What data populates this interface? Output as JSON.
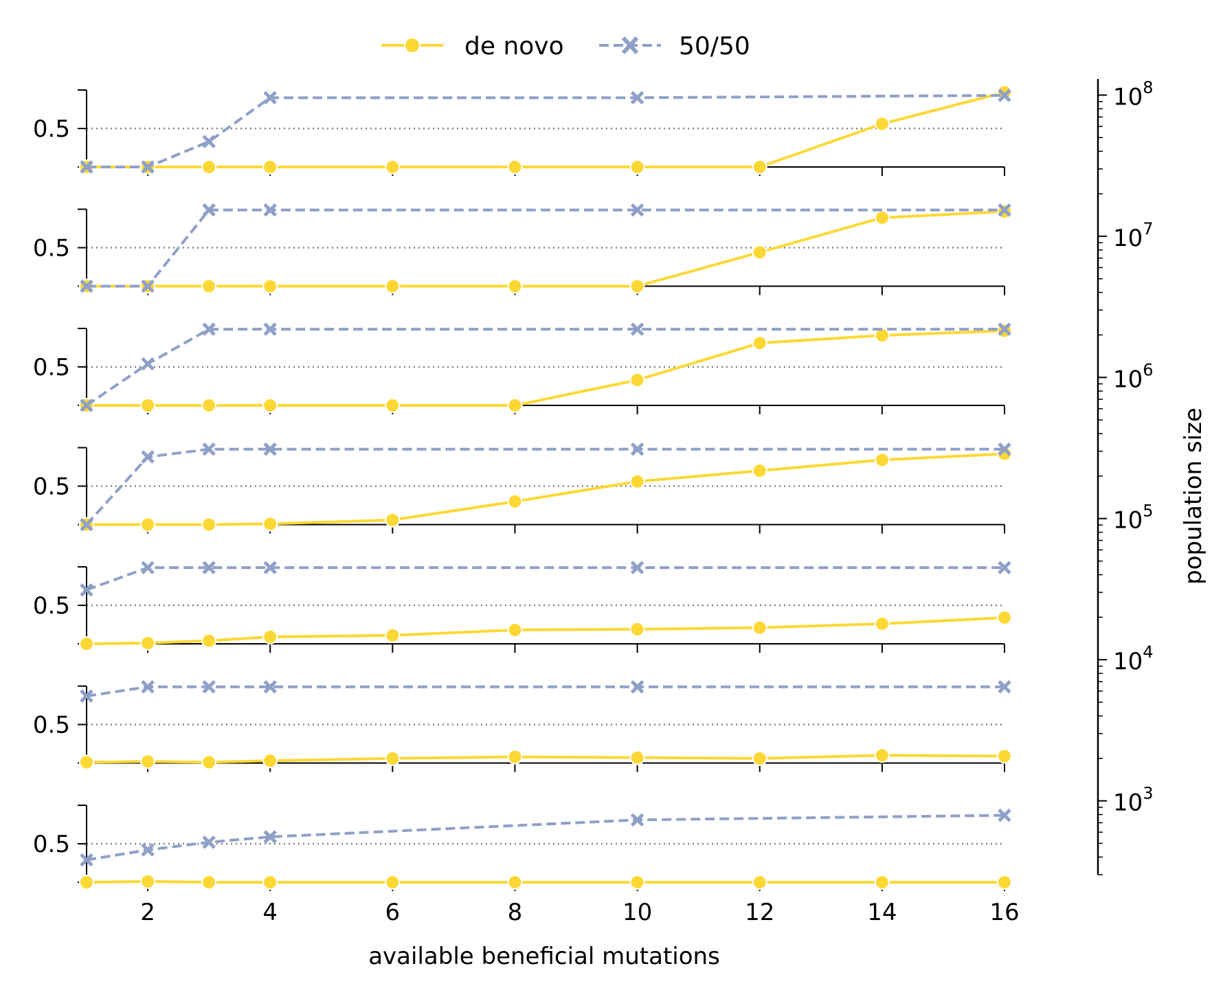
{
  "chart_data": {
    "type": "line",
    "xlabel": "available beneficial mutations",
    "x_ticks": [
      2,
      4,
      6,
      8,
      10,
      12,
      14,
      16
    ],
    "xlim": [
      1,
      16
    ],
    "panel_ylim": [
      0,
      1
    ],
    "panel_y_ticks": [
      0.5
    ],
    "reference_line": 0.5,
    "legend": {
      "placement": "top-center",
      "entries": [
        "de novo",
        "50/50"
      ]
    },
    "colors": {
      "de_novo": "#FDD835",
      "fifty": "#8FA0C8",
      "reference": "#808080"
    },
    "series_styles": {
      "de novo": {
        "marker": "circle",
        "dash": "solid"
      },
      "50/50": {
        "marker": "x",
        "dash": "dashed"
      }
    },
    "secondary_axis": {
      "label": "population size",
      "scale": "log",
      "range": [
        300,
        130000000
      ],
      "ticks": [
        {
          "base": "10",
          "exp": "3",
          "value": 1000
        },
        {
          "base": "10",
          "exp": "4",
          "value": 10000
        },
        {
          "base": "10",
          "exp": "5",
          "value": 100000
        },
        {
          "base": "10",
          "exp": "6",
          "value": 1000000
        },
        {
          "base": "10",
          "exp": "7",
          "value": 10000000
        },
        {
          "base": "10",
          "exp": "8",
          "value": 100000000
        }
      ]
    },
    "panels": [
      {
        "series": [
          {
            "name": "de novo",
            "x": [
              1,
              2,
              3,
              4,
              6,
              8,
              10,
              12,
              14,
              16
            ],
            "y": [
              0,
              0,
              0,
              0,
              0,
              0,
              0,
              0,
              0.56,
              0.97
            ]
          },
          {
            "name": "50/50",
            "x": [
              1,
              2,
              3,
              4,
              10,
              16
            ],
            "y": [
              0,
              0,
              0.33,
              0.9,
              0.9,
              0.93
            ]
          }
        ]
      },
      {
        "series": [
          {
            "name": "de novo",
            "x": [
              1,
              2,
              3,
              4,
              6,
              8,
              10,
              12,
              14,
              16
            ],
            "y": [
              0,
              0,
              0,
              0,
              0,
              0,
              0,
              0.44,
              0.89,
              0.97
            ]
          },
          {
            "name": "50/50",
            "x": [
              1,
              2,
              3,
              4,
              10,
              16
            ],
            "y": [
              0,
              0,
              0.99,
              0.99,
              0.99,
              0.99
            ]
          }
        ]
      },
      {
        "series": [
          {
            "name": "de novo",
            "x": [
              1,
              2,
              3,
              4,
              6,
              8,
              10,
              12,
              14,
              16
            ],
            "y": [
              0,
              0,
              0,
              0,
              0,
              0,
              0.33,
              0.81,
              0.91,
              0.97
            ]
          },
          {
            "name": "50/50",
            "x": [
              1,
              2,
              3,
              4,
              10,
              16
            ],
            "y": [
              0,
              0.54,
              0.99,
              0.99,
              0.99,
              0.99
            ]
          }
        ]
      },
      {
        "series": [
          {
            "name": "de novo",
            "x": [
              1,
              2,
              3,
              4,
              6,
              8,
              10,
              12,
              14,
              16
            ],
            "y": [
              0,
              0,
              0,
              0.01,
              0.06,
              0.3,
              0.56,
              0.7,
              0.84,
              0.92
            ]
          },
          {
            "name": "50/50",
            "x": [
              1,
              2,
              3,
              4,
              10,
              16
            ],
            "y": [
              0,
              0.88,
              0.98,
              0.98,
              0.98,
              0.98
            ]
          }
        ]
      },
      {
        "series": [
          {
            "name": "de novo",
            "x": [
              1,
              2,
              3,
              4,
              6,
              8,
              10,
              12,
              14,
              16
            ],
            "y": [
              0,
              0.01,
              0.04,
              0.09,
              0.11,
              0.18,
              0.19,
              0.21,
              0.26,
              0.34
            ]
          },
          {
            "name": "50/50",
            "x": [
              1,
              2,
              3,
              4,
              10,
              16
            ],
            "y": [
              0.7,
              0.99,
              0.99,
              0.99,
              0.99,
              0.99
            ]
          }
        ]
      },
      {
        "series": [
          {
            "name": "de novo",
            "x": [
              1,
              2,
              3,
              4,
              6,
              8,
              10,
              12,
              14,
              16
            ],
            "y": [
              0.01,
              0.02,
              0.01,
              0.03,
              0.06,
              0.08,
              0.07,
              0.06,
              0.1,
              0.09
            ]
          },
          {
            "name": "50/50",
            "x": [
              1,
              2,
              3,
              4,
              10,
              16
            ],
            "y": [
              0.87,
              0.99,
              0.99,
              0.99,
              0.99,
              0.99
            ]
          }
        ]
      },
      {
        "series": [
          {
            "name": "de novo",
            "x": [
              1,
              2,
              3,
              4,
              6,
              8,
              10,
              12,
              14,
              16
            ],
            "y": [
              0,
              0.01,
              0,
              0,
              0,
              0,
              0,
              0,
              0,
              0
            ]
          },
          {
            "name": "50/50",
            "x": [
              1,
              2,
              3,
              4,
              10,
              16
            ],
            "y": [
              0.29,
              0.42,
              0.52,
              0.59,
              0.81,
              0.87
            ]
          }
        ]
      }
    ]
  }
}
